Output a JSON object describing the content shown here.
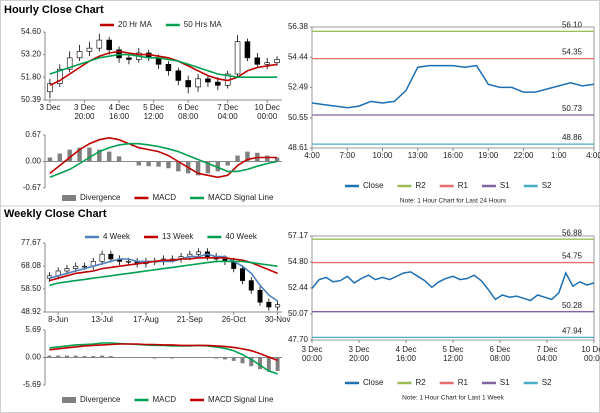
{
  "chart_data": [
    {
      "type": "candlestick",
      "title": "Hourly Close Chart",
      "open": [
        50.9,
        51.4,
        52.3,
        53.0,
        53.4,
        53.6,
        54.1,
        53.5,
        53.0,
        52.9,
        53.3,
        53.0,
        52.6,
        52.2,
        51.6,
        51.2,
        51.7,
        51.5,
        51.3,
        52.0,
        54.0,
        53.0,
        52.6,
        52.7
      ],
      "high": [
        51.7,
        52.6,
        53.4,
        53.8,
        54.0,
        54.5,
        54.3,
        53.7,
        53.3,
        53.6,
        53.5,
        53.2,
        52.8,
        52.4,
        51.9,
        52.0,
        51.9,
        51.8,
        52.2,
        54.4,
        54.2,
        53.3,
        53.0,
        53.1
      ],
      "low": [
        50.5,
        51.2,
        52.1,
        52.8,
        53.1,
        53.4,
        53.2,
        52.7,
        52.6,
        52.7,
        52.8,
        52.3,
        51.9,
        51.3,
        50.8,
        50.9,
        51.2,
        51.0,
        51.1,
        51.8,
        52.8,
        52.4,
        52.3,
        52.5
      ],
      "close": [
        51.4,
        52.3,
        53.0,
        53.4,
        53.6,
        54.1,
        53.5,
        53.0,
        52.9,
        53.3,
        53.0,
        52.6,
        52.2,
        51.6,
        51.2,
        51.7,
        51.5,
        51.3,
        52.0,
        54.0,
        53.0,
        52.6,
        52.7,
        52.9
      ],
      "up_color": "#ffffff",
      "down_color": "#000000",
      "series": [
        {
          "name": "20 Hr MA",
          "color": "#c00000",
          "values": [
            51.3,
            51.6,
            52.0,
            52.4,
            52.8,
            53.1,
            53.3,
            53.4,
            53.3,
            53.2,
            53.2,
            53.1,
            53.0,
            52.8,
            52.5,
            52.2,
            51.9,
            51.7,
            51.6,
            51.8,
            52.2,
            52.4,
            52.5,
            52.6
          ]
        },
        {
          "name": "50 Hrs MA",
          "color": "#00a050",
          "values": [
            52.0,
            52.2,
            52.4,
            52.6,
            52.8,
            53.0,
            53.1,
            53.2,
            53.2,
            53.1,
            53.0,
            53.0,
            52.9,
            52.8,
            52.6,
            52.4,
            52.2,
            52.0,
            51.9,
            51.8,
            51.8,
            51.8,
            51.8,
            51.8
          ]
        }
      ],
      "xlim": [
        -0.5,
        23.5
      ],
      "xticks": [
        {
          "value": 0,
          "label": [
            "3 Dec"
          ]
        },
        {
          "value": 3.5,
          "label": [
            "3 Dec",
            "20:00"
          ]
        },
        {
          "value": 7,
          "label": [
            "4 Dec",
            "16:00"
          ]
        },
        {
          "value": 10.5,
          "label": [
            "5 Dec",
            "12:00"
          ]
        },
        {
          "value": 14,
          "label": [
            "6 Dec",
            "08:00"
          ]
        },
        {
          "value": 18,
          "label": [
            "7 Dec",
            "04:00"
          ]
        },
        {
          "value": 22,
          "label": [
            "10 Dec",
            "00:00"
          ]
        }
      ],
      "ylim": [
        50.39,
        54.6
      ],
      "yticks": [
        {
          "value": 54.6,
          "label": "54.60"
        },
        {
          "value": 53.2,
          "label": "53.20"
        },
        {
          "value": 51.8,
          "label": "51.80"
        },
        {
          "value": 50.39,
          "label": "50.39"
        }
      ]
    },
    {
      "type": "combo",
      "series": [
        {
          "name": "Divergence",
          "color": "#808080",
          "kind": "bar",
          "values": [
            0.1,
            0.2,
            0.3,
            0.35,
            0.35,
            0.3,
            0.25,
            0.13,
            0.0,
            -0.1,
            -0.12,
            -0.13,
            -0.17,
            -0.25,
            -0.3,
            -0.35,
            -0.3,
            -0.25,
            -0.1,
            0.15,
            0.25,
            0.22,
            0.15,
            0.1
          ]
        },
        {
          "name": "MACD",
          "color": "#c00000",
          "kind": "line",
          "values": [
            -0.3,
            -0.1,
            0.1,
            0.3,
            0.45,
            0.55,
            0.6,
            0.55,
            0.45,
            0.35,
            0.3,
            0.25,
            0.15,
            0.0,
            -0.15,
            -0.3,
            -0.35,
            -0.4,
            -0.35,
            -0.1,
            0.05,
            0.1,
            0.1,
            0.1
          ]
        },
        {
          "name": "MACD Signal Line",
          "color": "#00a050",
          "kind": "line",
          "values": [
            -0.4,
            -0.3,
            -0.2,
            -0.05,
            0.1,
            0.25,
            0.35,
            0.42,
            0.45,
            0.45,
            0.42,
            0.38,
            0.32,
            0.25,
            0.15,
            0.05,
            -0.05,
            -0.15,
            -0.25,
            -0.25,
            -0.2,
            -0.12,
            -0.05,
            0.0
          ]
        }
      ],
      "xlim": [
        -0.5,
        23.5
      ],
      "ylim": [
        -0.67,
        0.67
      ],
      "yticks": [
        {
          "value": 0.67,
          "label": "0.67"
        },
        {
          "value": 0,
          "label": "0.00"
        },
        {
          "value": -0.67,
          "label": "-0.67"
        }
      ]
    },
    {
      "type": "line",
      "x": [
        0,
        1,
        2,
        3,
        4,
        5,
        6,
        7,
        8,
        9,
        10,
        11,
        12,
        13,
        14,
        15,
        16,
        17,
        18,
        19,
        20,
        21,
        22,
        23,
        24
      ],
      "series": [
        {
          "name": "Close",
          "color": "#1f6fb5",
          "values": [
            51.5,
            51.4,
            51.3,
            51.2,
            51.3,
            51.6,
            51.5,
            51.6,
            52.3,
            53.8,
            53.9,
            53.9,
            53.9,
            53.8,
            53.9,
            52.7,
            52.5,
            52.5,
            52.2,
            52.2,
            52.4,
            52.6,
            52.8,
            52.6,
            52.7
          ]
        }
      ],
      "levels": [
        {
          "name": "R2",
          "color": "#9bbb59",
          "value": 56.1,
          "label": "56.10"
        },
        {
          "name": "R1",
          "color": "#e46c6c",
          "value": 54.35,
          "label": "54.35"
        },
        {
          "name": "S1",
          "color": "#8064a2",
          "value": 50.73,
          "label": "50.73"
        },
        {
          "name": "S2",
          "color": "#4bacc6",
          "value": 48.86,
          "label": "48.86"
        }
      ],
      "xlim": [
        0,
        24
      ],
      "xticks": [
        {
          "value": 0,
          "label": "4:00"
        },
        {
          "value": 3,
          "label": "7:00"
        },
        {
          "value": 6,
          "label": "10:00"
        },
        {
          "value": 9,
          "label": "13:00"
        },
        {
          "value": 12,
          "label": "16:00"
        },
        {
          "value": 15,
          "label": "19:00"
        },
        {
          "value": 18,
          "label": "22:00"
        },
        {
          "value": 21,
          "label": "1:00"
        },
        {
          "value": 24,
          "label": "4:00"
        }
      ],
      "ylim": [
        48.61,
        56.38
      ],
      "yticks": [
        {
          "value": 56.38,
          "label": "56.38"
        },
        {
          "value": 54.44,
          "label": "54.44"
        },
        {
          "value": 52.49,
          "label": "52.49"
        },
        {
          "value": 50.55,
          "label": "50.55"
        },
        {
          "value": 48.61,
          "label": "48.61"
        }
      ],
      "note": "Note: 1 Hour Chart for Last 24 Hours"
    },
    {
      "type": "candlestick",
      "title": "Weekly Close Chart",
      "open": [
        63,
        64,
        66,
        67,
        68,
        68,
        70,
        73,
        71,
        70,
        70,
        69,
        70,
        70,
        71,
        71,
        72,
        73,
        74,
        72,
        71,
        70,
        67,
        62,
        58,
        53,
        51
      ],
      "high": [
        65.5,
        67.5,
        68.5,
        69.5,
        69.5,
        71.5,
        74.5,
        74.5,
        72.5,
        71.5,
        71.5,
        71.5,
        71.5,
        72.5,
        72.5,
        73.5,
        74.5,
        75.5,
        75.5,
        73.5,
        72.5,
        71.5,
        68.5,
        63.5,
        59.5,
        54.5,
        53.5
      ],
      "low": [
        61.5,
        62.5,
        64.5,
        65.5,
        66.5,
        66.5,
        68.5,
        69.5,
        68.5,
        68.5,
        67.5,
        67.5,
        68.5,
        68.5,
        69.5,
        69.5,
        70.5,
        71.5,
        70.5,
        69.5,
        68.5,
        65.5,
        60.5,
        56.5,
        51.5,
        49.5,
        49.5
      ],
      "close": [
        64,
        66,
        67,
        68,
        68,
        70,
        73,
        71,
        70,
        70,
        69,
        70,
        70,
        71,
        71,
        72,
        73,
        74,
        72,
        71,
        70,
        67,
        62,
        58,
        53,
        51,
        52
      ],
      "up_color": "#ffffff",
      "down_color": "#000000",
      "series": [
        {
          "name": "4 Week",
          "color": "#4f81bd",
          "values": [
            63,
            64,
            65,
            66,
            67,
            68,
            69,
            70,
            71,
            71,
            70,
            70,
            70,
            70,
            70,
            71,
            72,
            72,
            73,
            72,
            72,
            70,
            68,
            65,
            60,
            56,
            53.5
          ]
        },
        {
          "name": "13 Week",
          "color": "#c00000",
          "values": [
            62,
            63,
            64,
            65,
            65.5,
            66,
            67,
            67.5,
            68,
            68.5,
            69,
            69.5,
            70,
            70.5,
            70.5,
            71,
            71,
            71.5,
            71.5,
            71.5,
            71.5,
            71,
            70.5,
            69.5,
            68,
            66.5,
            65
          ]
        },
        {
          "name": "40 Week",
          "color": "#00a050",
          "values": [
            60,
            61,
            61.5,
            62,
            62.5,
            63,
            63.5,
            64,
            64.5,
            65,
            65.5,
            66,
            66.5,
            67,
            67.5,
            68,
            68.5,
            69,
            69.5,
            70,
            70,
            70,
            70,
            69.5,
            69,
            68.5,
            68
          ]
        }
      ],
      "xlim": [
        -0.5,
        26.5
      ],
      "xticks": [
        {
          "value": 1,
          "label": [
            "8-Jun"
          ]
        },
        {
          "value": 6,
          "label": [
            "13-Jul"
          ]
        },
        {
          "value": 11,
          "label": [
            "17-Aug"
          ]
        },
        {
          "value": 16,
          "label": [
            "21-Sep"
          ]
        },
        {
          "value": 21,
          "label": [
            "26-Oct"
          ]
        },
        {
          "value": 26,
          "label": [
            "30-Nov"
          ]
        }
      ],
      "ylim": [
        48.92,
        77.67
      ],
      "yticks": [
        {
          "value": 77.67,
          "label": "77.67"
        },
        {
          "value": 68.08,
          "label": "68.08"
        },
        {
          "value": 58.5,
          "label": "58.50"
        },
        {
          "value": 48.92,
          "label": "48.92"
        }
      ]
    },
    {
      "type": "combo",
      "series": [
        {
          "name": "Divergence",
          "color": "#808080",
          "kind": "bar",
          "values": [
            0.4,
            0.4,
            0.4,
            0.4,
            0.3,
            0.3,
            0.4,
            0.3,
            0.1,
            0,
            -0.1,
            -0.1,
            -0.2,
            -0.1,
            -0.2,
            -0.1,
            -0.1,
            0,
            -0.1,
            -0.2,
            -0.4,
            -0.7,
            -1.2,
            -1.8,
            -2.4,
            -2.9,
            -2.8
          ]
        },
        {
          "name": "MACD",
          "color": "#00a050",
          "kind": "line",
          "values": [
            2.0,
            2.2,
            2.4,
            2.6,
            2.7,
            2.8,
            3.0,
            3.0,
            2.9,
            2.8,
            2.7,
            2.6,
            2.5,
            2.5,
            2.4,
            2.4,
            2.4,
            2.5,
            2.4,
            2.2,
            1.9,
            1.4,
            0.6,
            -0.4,
            -1.6,
            -2.8,
            -3.4
          ]
        },
        {
          "name": "MACD Signal Line",
          "color": "#c00000",
          "kind": "line",
          "values": [
            1.6,
            1.8,
            2.0,
            2.2,
            2.4,
            2.5,
            2.6,
            2.7,
            2.8,
            2.8,
            2.8,
            2.7,
            2.7,
            2.6,
            2.6,
            2.5,
            2.5,
            2.5,
            2.5,
            2.4,
            2.3,
            2.1,
            1.8,
            1.4,
            0.8,
            0.1,
            -0.6
          ]
        }
      ],
      "xlim": [
        -0.5,
        26.5
      ],
      "ylim": [
        -5.69,
        5.69
      ],
      "yticks": [
        {
          "value": 5.69,
          "label": "5.69"
        },
        {
          "value": 0,
          "label": "0.00"
        },
        {
          "value": -5.69,
          "label": "-5.69"
        }
      ]
    },
    {
      "type": "line",
      "x": [
        0,
        3,
        6,
        9,
        12,
        15,
        18,
        21,
        24,
        27,
        30,
        33,
        36,
        39,
        42,
        45,
        48,
        51,
        54,
        57,
        60,
        63,
        66,
        69,
        72,
        75,
        78,
        81,
        84,
        87,
        90,
        93,
        96,
        99,
        102,
        105,
        108,
        111,
        114,
        117,
        120
      ],
      "series": [
        {
          "name": "Close",
          "color": "#1f6fb5",
          "values": [
            52.4,
            53.2,
            53.4,
            53.0,
            53.1,
            53.5,
            52.9,
            53.3,
            53.6,
            53.2,
            53.4,
            53.2,
            53.5,
            53.8,
            53.9,
            53.5,
            53.1,
            52.5,
            53.0,
            53.3,
            53.5,
            53.2,
            53.3,
            53.6,
            53.1,
            52.3,
            51.4,
            51.8,
            51.6,
            51.7,
            51.5,
            51.3,
            51.8,
            51.6,
            51.4,
            52.0,
            53.8,
            52.6,
            53.0,
            52.7,
            52.9
          ]
        }
      ],
      "levels": [
        {
          "name": "R2",
          "color": "#9bbb59",
          "value": 56.88,
          "label": "56.88"
        },
        {
          "name": "R1",
          "color": "#e46c6c",
          "value": 54.75,
          "label": "54.75"
        },
        {
          "name": "S1",
          "color": "#8064a2",
          "value": 50.28,
          "label": "50.28"
        },
        {
          "name": "S2",
          "color": "#4bacc6",
          "value": 47.94,
          "label": "47.94"
        }
      ],
      "xlim": [
        0,
        120
      ],
      "xticks": [
        {
          "value": 0,
          "label": [
            "3 Dec",
            "00:00"
          ]
        },
        {
          "value": 20,
          "label": [
            "3 Dec",
            "20:00"
          ]
        },
        {
          "value": 40,
          "label": [
            "4 Dec",
            "16:00"
          ]
        },
        {
          "value": 60,
          "label": [
            "5 Dec",
            "12:00"
          ]
        },
        {
          "value": 80,
          "label": [
            "6 Dec",
            "08:00"
          ]
        },
        {
          "value": 100,
          "label": [
            "7 Dec",
            "04:00"
          ]
        },
        {
          "value": 120,
          "label": [
            "10 Dec",
            "00:00"
          ]
        }
      ],
      "ylim": [
        47.7,
        57.17
      ],
      "yticks": [
        {
          "value": 57.17,
          "label": "57.17"
        },
        {
          "value": 54.8,
          "label": "54.80"
        },
        {
          "value": 52.44,
          "label": "52.44"
        },
        {
          "value": 50.07,
          "label": "50.07"
        },
        {
          "value": 47.7,
          "label": "47.70"
        }
      ],
      "note": "Note: 1 Hour Chart for Last 1 Week"
    }
  ]
}
